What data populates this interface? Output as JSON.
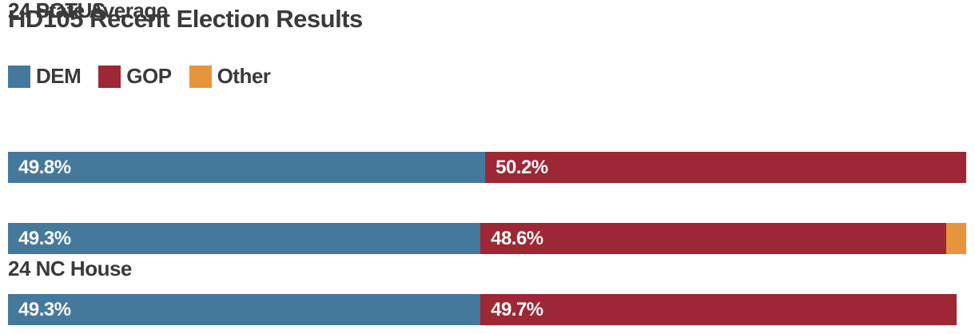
{
  "title": "HD105 Recent Election Results",
  "colors": {
    "dem": "#45799C",
    "gop": "#9E2735",
    "other": "#E7953C",
    "text": "#3A3A3A",
    "value_text": "#FAFAFA",
    "background": "#FFFFFF"
  },
  "legend": {
    "items": [
      {
        "label": "DEM"
      },
      {
        "label": "GOP"
      },
      {
        "label": "Other"
      }
    ]
  },
  "rows": [
    {
      "label": "24 NC House",
      "dem_pct": 49.8,
      "dem_label": "49.8%",
      "gop_pct": 50.2,
      "gop_label": "50.2%",
      "other_pct": 0
    },
    {
      "label": "24 POTUS",
      "dem_pct": 49.3,
      "dem_label": "49.3%",
      "gop_pct": 48.6,
      "gop_label": "48.6%",
      "other_pct": 2.1
    },
    {
      "label": "24 State Average",
      "dem_pct": 49.3,
      "dem_label": "49.3%",
      "gop_pct": 49.7,
      "gop_label": "49.7%",
      "other_pct": 0
    }
  ],
  "chart_data": {
    "type": "bar",
    "orientation": "horizontal",
    "stacked": true,
    "title": "HD105 Recent Election Results",
    "categories": [
      "24 NC House",
      "24 POTUS",
      "24 State Average"
    ],
    "series": [
      {
        "name": "DEM",
        "values": [
          49.8,
          49.3,
          49.3
        ]
      },
      {
        "name": "GOP",
        "values": [
          50.2,
          48.6,
          49.7
        ]
      },
      {
        "name": "Other",
        "values": [
          0,
          2.1,
          0
        ]
      }
    ],
    "value_labels": [
      [
        "49.8%",
        "50.2%",
        ""
      ],
      [
        "49.3%",
        "48.6%",
        ""
      ],
      [
        "49.3%",
        "49.7%",
        ""
      ]
    ],
    "xlim": [
      0,
      100
    ],
    "xlabel": "",
    "ylabel": "",
    "grid": false,
    "legend_position": "top-left",
    "legend_entries": [
      "DEM",
      "GOP",
      "Other"
    ],
    "axes_shown": false
  }
}
